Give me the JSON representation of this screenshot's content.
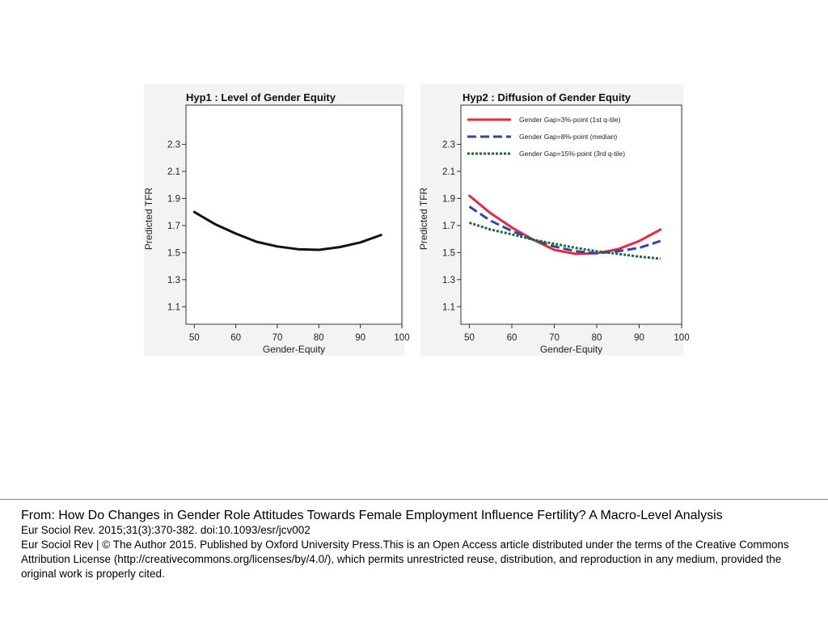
{
  "chart_data": [
    {
      "type": "line",
      "title": "Hyp1 : Level of Gender Equity",
      "xlabel": "Gender-Equity",
      "ylabel": "Predicted TFR",
      "xlim": [
        48,
        100
      ],
      "ylim": [
        0.97,
        2.59
      ],
      "xticks": [
        50,
        60,
        70,
        80,
        90,
        100
      ],
      "yticks": [
        1.1,
        1.3,
        1.5,
        1.7,
        1.9,
        2.1,
        2.3
      ],
      "series": [
        {
          "color": "#111111",
          "style": "solid",
          "x": [
            50,
            55,
            60,
            65,
            70,
            75,
            80,
            85,
            90,
            95
          ],
          "y": [
            1.8,
            1.71,
            1.64,
            1.58,
            1.545,
            1.525,
            1.52,
            1.54,
            1.575,
            1.63
          ]
        }
      ]
    },
    {
      "type": "line",
      "title": "Hyp2 : Diffusion of Gender Equity",
      "xlabel": "Gender-Equity",
      "ylabel": "Predicted TFR",
      "xlim": [
        48,
        100
      ],
      "ylim": [
        0.97,
        2.59
      ],
      "xticks": [
        50,
        60,
        70,
        80,
        90,
        100
      ],
      "yticks": [
        1.1,
        1.3,
        1.5,
        1.7,
        1.9,
        2.1,
        2.3
      ],
      "legend": "top-left",
      "series": [
        {
          "name": "Gender Gap=3%-point (1st q-tile)",
          "color": "#e8283c",
          "style": "solid",
          "x": [
            50,
            55,
            60,
            65,
            70,
            75,
            80,
            85,
            90,
            95
          ],
          "y": [
            1.92,
            1.79,
            1.685,
            1.595,
            1.52,
            1.49,
            1.495,
            1.525,
            1.585,
            1.67
          ]
        },
        {
          "name": "Gender Gap=8%-point (median)",
          "color": "#2d47b0",
          "style": "dashed",
          "x": [
            50,
            55,
            60,
            65,
            70,
            75,
            80,
            85,
            90,
            95
          ],
          "y": [
            1.84,
            1.735,
            1.66,
            1.595,
            1.545,
            1.51,
            1.495,
            1.51,
            1.535,
            1.585
          ]
        },
        {
          "name": "Gender Gap=15%-point (3rd q-tile)",
          "color": "#1f6b2e",
          "style": "dotted",
          "x": [
            50,
            55,
            60,
            65,
            70,
            75,
            80,
            85,
            90,
            95
          ],
          "y": [
            1.72,
            1.67,
            1.635,
            1.595,
            1.565,
            1.535,
            1.51,
            1.49,
            1.47,
            1.455
          ]
        }
      ]
    }
  ],
  "caption": {
    "from": "From: How Do Changes in Gender Role Attitudes Towards Female Employment Influence Fertility? A Macro-Level Analysis",
    "citation": "Eur Sociol Rev. 2015;31(3):370-382. doi:10.1093/esr/jcv002",
    "license": "Eur Sociol Rev | © The Author 2015. Published by Oxford University Press.This is an Open Access article distributed under the terms of the Creative Commons Attribution License (http://creativecommons.org/licenses/by/4.0/), which permits unrestricted reuse, distribution, and reproduction in any medium, provided the original work is properly cited."
  }
}
